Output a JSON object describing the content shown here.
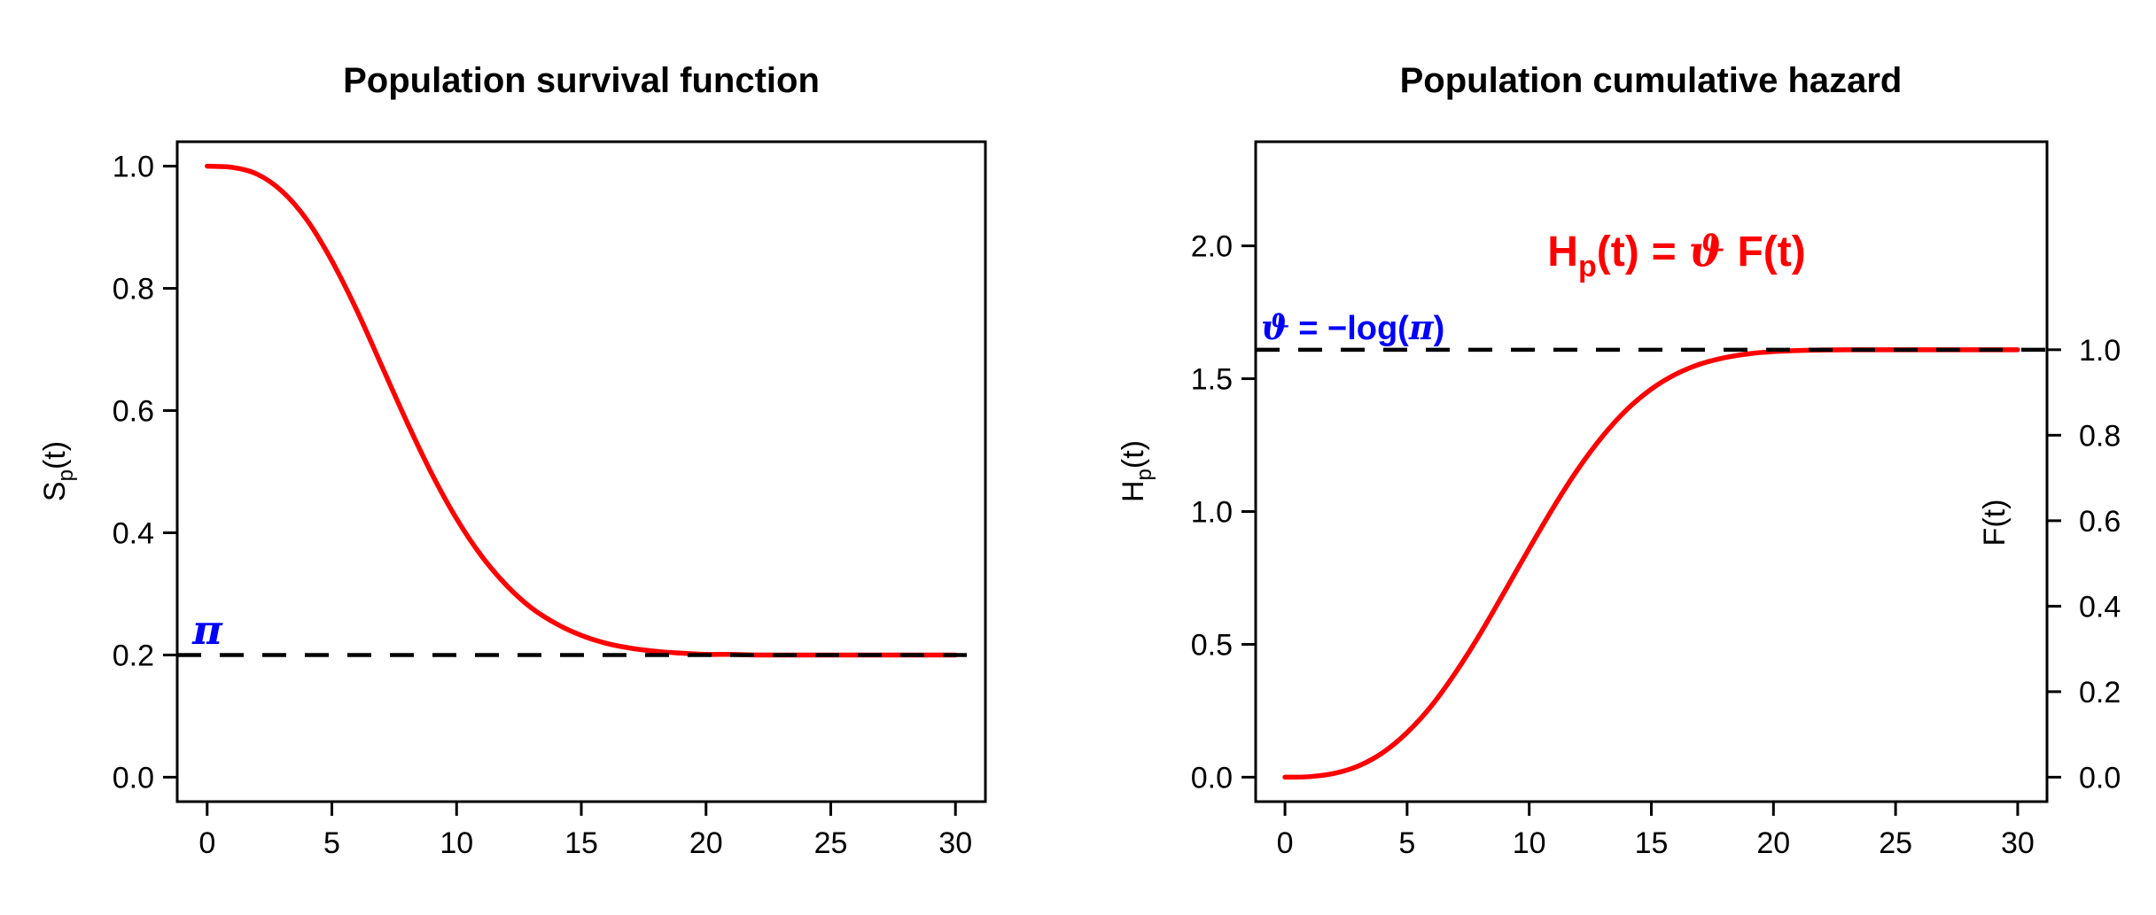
{
  "figure": {
    "background": "#FFFFFF",
    "axis_color": "#000000",
    "curve_color": "#FF0000",
    "annotation_blue": "#0000FF",
    "reference_line_color": "#000000"
  },
  "chart_data": [
    {
      "type": "line",
      "title": "Population survival function",
      "xlabel": "",
      "ylabel": "S_p(t)",
      "ylabel_parts": {
        "base": "S",
        "sub": "p",
        "tail": "(t)"
      },
      "xlim": [
        0,
        30
      ],
      "ylim": [
        0,
        1
      ],
      "grid": false,
      "legend": "none",
      "x_ticks": [
        0,
        5,
        10,
        15,
        20,
        25,
        30
      ],
      "x_tick_labels": [
        "0",
        "5",
        "10",
        "15",
        "20",
        "25",
        "30"
      ],
      "y_ticks": [
        0,
        0.2,
        0.4,
        0.6,
        0.8,
        1
      ],
      "y_tick_labels": [
        "0.0",
        "0.2",
        "0.4",
        "0.6",
        "0.8",
        "1.0"
      ],
      "series": [
        {
          "name": "S_p(t)",
          "color": "#FF0000",
          "x": [
            0,
            1,
            2,
            3,
            4,
            5,
            6,
            7,
            8,
            9,
            10,
            11,
            12,
            13,
            14,
            15,
            16,
            17,
            18,
            19,
            20,
            21,
            22,
            23,
            24,
            25,
            26,
            27,
            28,
            29,
            30
          ],
          "y": [
            1.0,
            0.998,
            0.987,
            0.959,
            0.912,
            0.845,
            0.764,
            0.673,
            0.582,
            0.497,
            0.423,
            0.362,
            0.314,
            0.277,
            0.251,
            0.232,
            0.219,
            0.211,
            0.206,
            0.203,
            0.201,
            0.201,
            0.2,
            0.2,
            0.2,
            0.2,
            0.2,
            0.2,
            0.2,
            0.2,
            0.2
          ]
        }
      ],
      "reference_line": {
        "value": 0.2,
        "style": "dashed",
        "color": "#000000",
        "label": "π",
        "label_color": "#0000FF"
      }
    },
    {
      "type": "line",
      "title": "Population cumulative hazard",
      "xlabel": "",
      "ylabel": "H_p(t)",
      "ylabel_parts": {
        "base": "H",
        "sub": "p",
        "tail": "(t)"
      },
      "y2label": "F(t)",
      "xlim": [
        0,
        30
      ],
      "ylim": [
        0,
        2.3
      ],
      "y2lim": [
        0,
        1
      ],
      "grid": false,
      "legend": "none",
      "x_ticks": [
        0,
        5,
        10,
        15,
        20,
        25,
        30
      ],
      "x_tick_labels": [
        "0",
        "5",
        "10",
        "15",
        "20",
        "25",
        "30"
      ],
      "y_ticks": [
        0,
        0.5,
        1,
        1.5,
        2
      ],
      "y_tick_labels": [
        "0.0",
        "0.5",
        "1.0",
        "1.5",
        "2.0"
      ],
      "y2_ticks": [
        0,
        0.2,
        0.4,
        0.6,
        0.8,
        1
      ],
      "y2_tick_labels": [
        "0.0",
        "0.2",
        "0.4",
        "0.6",
        "0.8",
        "1.0"
      ],
      "series": [
        {
          "name": "H_p(t)",
          "color": "#FF0000",
          "x": [
            0,
            1,
            2,
            3,
            4,
            5,
            6,
            7,
            8,
            9,
            10,
            11,
            12,
            13,
            14,
            15,
            16,
            17,
            18,
            19,
            20,
            21,
            22,
            23,
            24,
            25,
            26,
            27,
            28,
            29,
            30
          ],
          "y": [
            0.0,
            0.002,
            0.014,
            0.042,
            0.092,
            0.168,
            0.269,
            0.396,
            0.541,
            0.7,
            0.861,
            1.017,
            1.16,
            1.283,
            1.384,
            1.461,
            1.517,
            1.555,
            1.579,
            1.594,
            1.602,
            1.606,
            1.608,
            1.609,
            1.609,
            1.609,
            1.609,
            1.609,
            1.609,
            1.609,
            1.609
          ]
        }
      ],
      "reference_line": {
        "value": 1.609,
        "style": "dashed",
        "color": "#000000",
        "label": "ϑ = −log(π)",
        "label_parts": {
          "theta": "ϑ",
          "mid": "= −log(",
          "pi": "π",
          "close": ")"
        },
        "label_color": "#0000FF"
      },
      "annotation": {
        "text": "H_p(t) = ϑ F(t)",
        "color": "#FF0000",
        "parts": {
          "lhs": "H",
          "lhs_sub": "p",
          "lhs_tail": "(t)",
          "eq": "=",
          "theta": "ϑ",
          "rhs": "F(t)"
        }
      }
    }
  ]
}
